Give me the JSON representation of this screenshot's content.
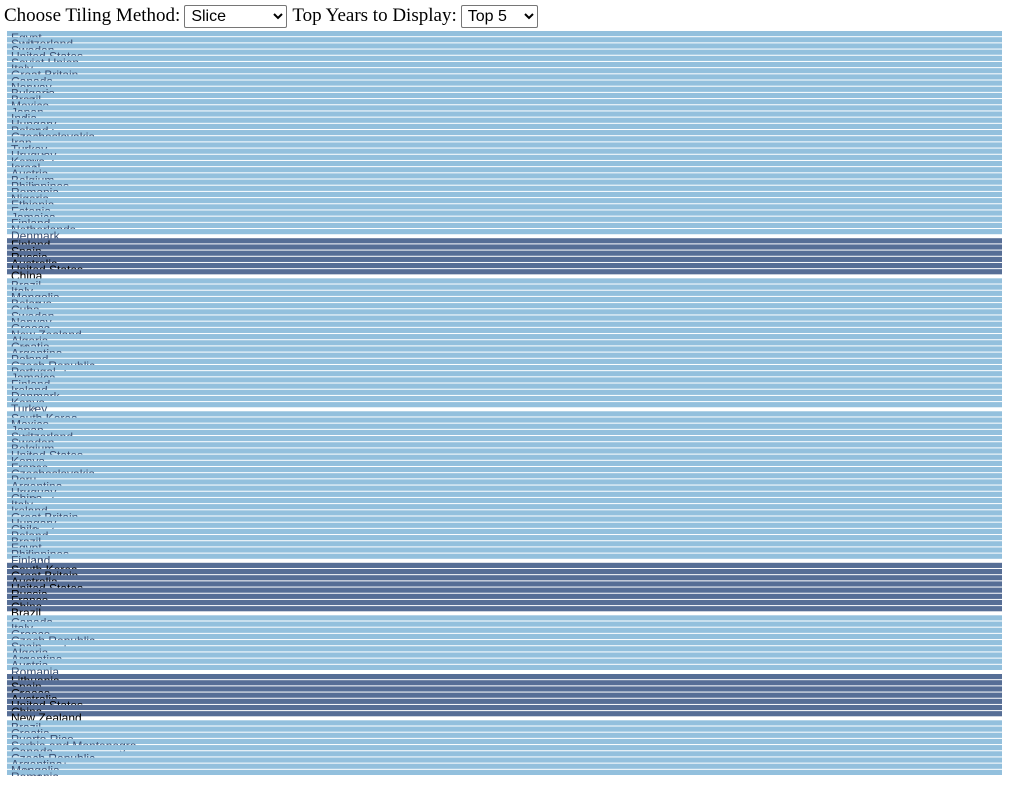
{
  "controls": {
    "tiling_label": "Choose Tiling Method:",
    "tiling_options": [
      "Slice"
    ],
    "tiling_selected": "Slice",
    "top_label": "Top Years to Display:",
    "top_options": [
      "Top 5"
    ],
    "top_selected": "Top 5"
  },
  "colors": {
    "top_year": "#566e96",
    "other_year": "#93c0dd",
    "separator": "#ffffff"
  },
  "chart_data": {
    "type": "treemap",
    "tiling": "slice",
    "groups": [
      {
        "highlighted": false,
        "countries": [
          "Egypt",
          "Switzerland",
          "Sweden",
          "United States",
          "Soviet Union",
          "Italy",
          "Great Britain",
          "Canada",
          "Norway",
          "Bulgaria",
          "Brazil",
          "Mexico",
          "Japan",
          "India",
          "Hungary",
          "Poland",
          "Czechoslovakia",
          "Iran",
          "Turkey",
          "Uruguay",
          "Kenya",
          "Israel",
          "Austria",
          "Belgium",
          "Philippines",
          "Romania",
          "Nigeria",
          "Ethiopia",
          "Estonia",
          "Jamaica",
          "Finland",
          "Netherlands",
          "Denmark"
        ]
      },
      {
        "highlighted": true,
        "countries": [
          "Finland",
          "Spain",
          "Russia",
          "Australia",
          "United States",
          "China"
        ]
      },
      {
        "highlighted": false,
        "countries": [
          "Brazil",
          "Italy",
          "Mongolia",
          "Belarus",
          "Cuba",
          "Sweden",
          "Norway",
          "Greece",
          "New Zealand",
          "Algeria",
          "Croatia",
          "Argentina",
          "Poland",
          "Czech Republic",
          "Portugal",
          "Jamaica",
          "Finland",
          "Ireland",
          "Denmark",
          "Kenya",
          "Turkey"
        ]
      },
      {
        "highlighted": false,
        "countries": [
          "South Korea",
          "Mexico",
          "Japan",
          "Switzerland",
          "Sweden",
          "Belgium",
          "United States",
          "Kenya",
          "France",
          "Czechoslovakia",
          "Peru",
          "Argentina",
          "Uruguay",
          "China",
          "Italy",
          "Ireland",
          "Great Britain",
          "Hungary",
          "Chile",
          "Poland",
          "Brazil",
          "Egypt",
          "Philippines",
          "Finland"
        ]
      },
      {
        "highlighted": true,
        "countries": [
          "South Korea",
          "Great Britain",
          "Australia",
          "United States",
          "Russia",
          "France",
          "China",
          "Brazil"
        ]
      },
      {
        "highlighted": false,
        "countries": [
          "Canada",
          "Italy",
          "Greece",
          "Czech Republic",
          "Spain",
          "Algeria",
          "Argentina",
          "Austria",
          "Romania"
        ]
      },
      {
        "highlighted": true,
        "countries": [
          "Lithuania",
          "Spain",
          "Greece",
          "Australia",
          "United States",
          "China",
          "New Zealand"
        ]
      },
      {
        "highlighted": false,
        "countries": [
          "Brazil",
          "Croatia",
          "Puerto Rico",
          "Serbia and Montenegro",
          "Canada",
          "Czech Republic",
          "Argentina",
          "Mongolia",
          "Romania"
        ]
      }
    ]
  }
}
